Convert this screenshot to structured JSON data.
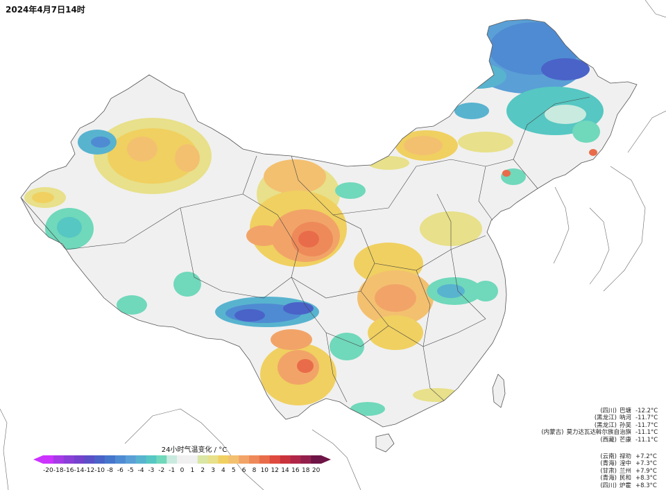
{
  "title": "2024年4月7日14时",
  "legend": {
    "title": "24小时气温变化 / °C",
    "ticks": [
      "-20",
      "-18",
      "-16",
      "-14",
      "-12",
      "-10",
      "-8",
      "-6",
      "-5",
      "-4",
      "-3",
      "-2",
      "-1",
      "0",
      "1",
      "2",
      "3",
      "4",
      "5",
      "6",
      "8",
      "10",
      "12",
      "14",
      "16",
      "18",
      "20"
    ],
    "colors": [
      "#cc33ff",
      "#a63ae6",
      "#8a3fd8",
      "#7442cc",
      "#5b4fc8",
      "#4a63c8",
      "#4576cc",
      "#4f8bd2",
      "#5a9fd6",
      "#58b3cf",
      "#56c7c2",
      "#70d8bb",
      "#c9eadf",
      "#f0f0f0",
      "#f0f0f0",
      "#d9e6a4",
      "#e8e08a",
      "#f0d060",
      "#f3c070",
      "#f2a468",
      "#ee8a5a",
      "#e96c4a",
      "#de4a3d",
      "#c9333c",
      "#b02648",
      "#93204c",
      "#6e1446"
    ]
  },
  "drops": {
    "title": "",
    "rows": [
      {
        "prov": "(四川)",
        "name": "巴塘",
        "val": "-12.2°C"
      },
      {
        "prov": "(黑龙江)",
        "name": "呐河",
        "val": "-11.7°C"
      },
      {
        "prov": "(黑龙江)",
        "name": "孙吴",
        "val": "-11.7°C"
      },
      {
        "prov": "(内蒙古)",
        "name": "莫力达瓦达斡尔族自治旗",
        "val": "-11.1°C"
      },
      {
        "prov": "(西藏)",
        "name": "芒康",
        "val": "-11.1°C"
      }
    ]
  },
  "rises": {
    "rows": [
      {
        "prov": "(云南)",
        "name": "禄劝",
        "val": "+7.2°C"
      },
      {
        "prov": "(青海)",
        "name": "湟中",
        "val": "+7.3°C"
      },
      {
        "prov": "(甘肃)",
        "name": "兰州",
        "val": "+7.9°C"
      },
      {
        "prov": "(青海)",
        "name": "民和",
        "val": "+8.3°C"
      },
      {
        "prov": "(四川)",
        "name": "炉霍",
        "val": "+8.3°C"
      }
    ]
  }
}
